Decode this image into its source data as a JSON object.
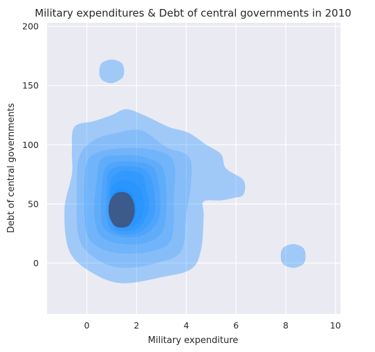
{
  "chart_data": {
    "type": "kde_contour",
    "title": "Military expenditures & Debt of central governments in 2010",
    "xlabel": "Military expenditure",
    "ylabel": "Debt of central governments",
    "xlim": [
      -1.6,
      10.2
    ],
    "ylim": [
      -43,
      203
    ],
    "xticks": [
      0,
      2,
      4,
      6,
      8,
      10
    ],
    "yticks": [
      0,
      50,
      100,
      150,
      200
    ],
    "grid": true,
    "background": "#eaeaf2",
    "fill_color": "#1e90ff",
    "levels": [
      {
        "level": 1,
        "opacity": 0.36,
        "regions": [
          {
            "name": "main",
            "points": [
              [
                1.4,
                -17
              ],
              [
                3.0,
                -12
              ],
              [
                4.2,
                -5
              ],
              [
                4.6,
                12
              ],
              [
                4.7,
                40
              ],
              [
                4.7,
                52
              ],
              [
                5.4,
                53
              ],
              [
                5.9,
                55
              ],
              [
                6.3,
                58
              ],
              [
                6.3,
                70
              ],
              [
                5.6,
                80
              ],
              [
                5.4,
                92
              ],
              [
                4.8,
                100
              ],
              [
                4.1,
                110
              ],
              [
                3.3,
                115
              ],
              [
                2.4,
                124
              ],
              [
                1.6,
                130
              ],
              [
                1.0,
                125
              ],
              [
                0.3,
                120
              ],
              [
                -0.5,
                115
              ],
              [
                -0.6,
                95
              ],
              [
                -0.6,
                75
              ],
              [
                -0.9,
                45
              ],
              [
                -0.7,
                10
              ],
              [
                0.2,
                -8
              ]
            ]
          },
          {
            "name": "upper-blob",
            "points": [
              [
                1.0,
                152
              ],
              [
                1.4,
                156
              ],
              [
                1.5,
                162
              ],
              [
                1.4,
                169
              ],
              [
                1.0,
                172
              ],
              [
                0.6,
                169
              ],
              [
                0.5,
                162
              ],
              [
                0.6,
                155
              ]
            ]
          },
          {
            "name": "right-blob",
            "points": [
              [
                8.3,
                -4
              ],
              [
                8.7,
                -1
              ],
              [
                8.8,
                6
              ],
              [
                8.7,
                13
              ],
              [
                8.3,
                16
              ],
              [
                7.9,
                13
              ],
              [
                7.8,
                6
              ],
              [
                7.9,
                -1
              ]
            ]
          }
        ]
      },
      {
        "level": 2,
        "opacity": 0.2,
        "regions": [
          {
            "name": "main",
            "points": [
              [
                1.5,
                -4
              ],
              [
                2.8,
                0
              ],
              [
                3.8,
                10
              ],
              [
                4.0,
                40
              ],
              [
                4.2,
                70
              ],
              [
                4.1,
                90
              ],
              [
                3.2,
                98
              ],
              [
                2.2,
                112
              ],
              [
                1.2,
                110
              ],
              [
                0.3,
                104
              ],
              [
                -0.3,
                90
              ],
              [
                -0.4,
                60
              ],
              [
                -0.3,
                20
              ],
              [
                0.5,
                2
              ]
            ]
          }
        ]
      },
      {
        "level": 3,
        "opacity": 0.2,
        "regions": [
          {
            "name": "main",
            "points": [
              [
                1.5,
                8
              ],
              [
                2.6,
                10
              ],
              [
                3.4,
                20
              ],
              [
                3.5,
                55
              ],
              [
                3.5,
                85
              ],
              [
                2.8,
                95
              ],
              [
                1.5,
                97
              ],
              [
                0.5,
                94
              ],
              [
                0.0,
                85
              ],
              [
                -0.1,
                60
              ],
              [
                0.0,
                25
              ],
              [
                0.6,
                12
              ]
            ]
          }
        ]
      },
      {
        "level": 4,
        "opacity": 0.22,
        "regions": [
          {
            "name": "main",
            "points": [
              [
                1.5,
                16
              ],
              [
                2.5,
                18
              ],
              [
                3.1,
                30
              ],
              [
                3.2,
                60
              ],
              [
                3.0,
                82
              ],
              [
                2.2,
                90
              ],
              [
                1.4,
                91
              ],
              [
                0.6,
                88
              ],
              [
                0.4,
                70
              ],
              [
                0.3,
                40
              ],
              [
                0.6,
                22
              ]
            ]
          }
        ]
      },
      {
        "level": 5,
        "opacity": 0.25,
        "regions": [
          {
            "name": "main",
            "points": [
              [
                1.5,
                22
              ],
              [
                2.3,
                24
              ],
              [
                2.9,
                38
              ],
              [
                2.9,
                65
              ],
              [
                2.6,
                82
              ],
              [
                1.6,
                86
              ],
              [
                0.8,
                82
              ],
              [
                0.6,
                62
              ],
              [
                0.6,
                35
              ],
              [
                0.9,
                26
              ]
            ]
          }
        ]
      },
      {
        "level": 6,
        "opacity": 0.27,
        "regions": [
          {
            "name": "main",
            "points": [
              [
                1.5,
                24
              ],
              [
                2.2,
                27
              ],
              [
                2.7,
                40
              ],
              [
                2.7,
                62
              ],
              [
                2.4,
                78
              ],
              [
                1.6,
                82
              ],
              [
                0.9,
                78
              ],
              [
                0.8,
                60
              ],
              [
                0.8,
                38
              ],
              [
                1.0,
                28
              ]
            ]
          }
        ]
      },
      {
        "level": 7,
        "opacity": 0.35,
        "regions": [
          {
            "name": "main",
            "points": [
              [
                1.5,
                27
              ],
              [
                2.1,
                30
              ],
              [
                2.5,
                45
              ],
              [
                2.4,
                62
              ],
              [
                2.2,
                75
              ],
              [
                1.5,
                78
              ],
              [
                1.0,
                72
              ],
              [
                0.9,
                55
              ],
              [
                0.9,
                40
              ],
              [
                1.1,
                30
              ]
            ]
          }
        ]
      },
      {
        "level": 8,
        "opacity": 0.45,
        "regions": [
          {
            "name": "main",
            "points": [
              [
                1.5,
                30
              ],
              [
                2.0,
                33
              ],
              [
                2.3,
                45
              ],
              [
                2.2,
                60
              ],
              [
                1.9,
                68
              ],
              [
                1.4,
                70
              ],
              [
                1.0,
                64
              ],
              [
                0.9,
                50
              ],
              [
                1.0,
                38
              ],
              [
                1.2,
                32
              ]
            ]
          }
        ]
      },
      {
        "level": 9,
        "opacity": 0.6,
        "regions": [
          {
            "name": "main",
            "points": [
              [
                1.4,
                33
              ],
              [
                1.8,
                35
              ],
              [
                2.0,
                44
              ],
              [
                1.9,
                55
              ],
              [
                1.7,
                61
              ],
              [
                1.3,
                63
              ],
              [
                1.0,
                57
              ],
              [
                0.9,
                46
              ],
              [
                1.0,
                38
              ],
              [
                1.2,
                34
              ]
            ]
          }
        ]
      },
      {
        "level": 10,
        "opacity": 1.0,
        "color": "#3c5a8a",
        "regions": [
          {
            "name": "core",
            "points": [
              [
                1.4,
                30
              ],
              [
                1.7,
                32
              ],
              [
                1.9,
                40
              ],
              [
                1.9,
                50
              ],
              [
                1.7,
                58
              ],
              [
                1.4,
                60
              ],
              [
                1.1,
                58
              ],
              [
                0.9,
                50
              ],
              [
                0.9,
                40
              ],
              [
                1.1,
                32
              ]
            ]
          }
        ]
      }
    ]
  }
}
